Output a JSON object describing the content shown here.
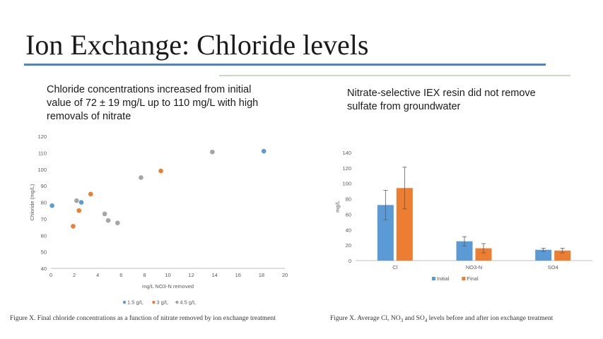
{
  "slide": {
    "title": "Ion Exchange: Chloride levels",
    "left_text": "Chloride concentrations increased from initial value of 72 ± 19 mg/L up to 110 mg/L with high removals of nitrate",
    "right_text": "Nitrate-selective IEX resin did not remove sulfate from groundwater",
    "left_caption": "Figure X. Final chloride concentrations as a function of  nitrate removed by ion exchange treatment",
    "right_caption_parts": [
      "Figure X. Average Cl, NO",
      "3",
      " and SO",
      "4",
      " levels before and after ion exchange treatment"
    ]
  },
  "chart_data": [
    {
      "type": "scatter",
      "xlabel": "mg/L  NO3-N  removed",
      "ylabel": "Chloride (mg/L)",
      "xlim": [
        0,
        20
      ],
      "ylim": [
        40,
        120
      ],
      "xticks": [
        0,
        2,
        4,
        6,
        8,
        10,
        12,
        14,
        16,
        18,
        20
      ],
      "yticks": [
        40,
        50,
        60,
        70,
        80,
        90,
        100,
        110,
        120
      ],
      "grid": false,
      "legend_position": "bottom",
      "series": [
        {
          "name": "1.5 g/L",
          "color": "#5b9bd5",
          "points": [
            [
              0.1,
              78
            ],
            [
              2.6,
              80
            ],
            [
              18.2,
              111
            ]
          ]
        },
        {
          "name": "3 g/L",
          "color": "#ed7d31",
          "points": [
            [
              1.9,
              65.5
            ],
            [
              2.4,
              75
            ],
            [
              3.4,
              85
            ],
            [
              9.4,
              99
            ]
          ]
        },
        {
          "name": "4.5 g/L",
          "color": "#a5a5a5",
          "points": [
            [
              2.2,
              81
            ],
            [
              4.6,
              73
            ],
            [
              4.9,
              69
            ],
            [
              5.7,
              67.5
            ],
            [
              7.7,
              95
            ],
            [
              13.8,
              110.5
            ]
          ]
        }
      ]
    },
    {
      "type": "bar",
      "ylabel": "mg/L",
      "ylim": [
        0,
        140
      ],
      "yticks": [
        0,
        20,
        40,
        60,
        80,
        100,
        120,
        140
      ],
      "categories": [
        "Cl",
        "NO3-N",
        "SO4"
      ],
      "grid": false,
      "legend_position": "bottom",
      "series": [
        {
          "name": "Initial",
          "color": "#5b9bd5",
          "values": [
            72,
            25,
            14
          ],
          "errors": [
            19,
            6,
            2
          ]
        },
        {
          "name": "Final",
          "color": "#ed7d31",
          "values": [
            94,
            16,
            13
          ],
          "errors": [
            27,
            6,
            3
          ]
        }
      ]
    }
  ]
}
